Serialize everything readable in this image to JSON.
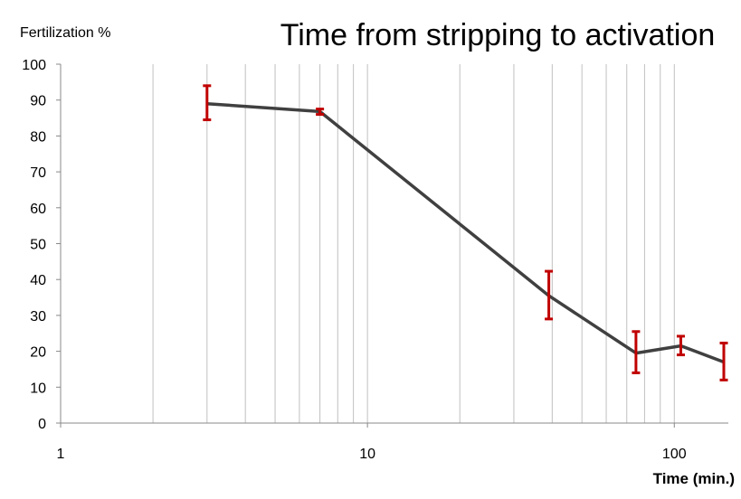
{
  "chart_data": {
    "type": "line",
    "title": "Time from stripping to activation",
    "ylabel": "Fertilization %",
    "xlabel": "Time (min.)",
    "x_scale": "log",
    "xlim": [
      1,
      150
    ],
    "ylim": [
      0,
      100
    ],
    "y_ticks": [
      0,
      10,
      20,
      30,
      40,
      50,
      60,
      70,
      80,
      90,
      100
    ],
    "x_tick_labels": [
      "1",
      "10",
      "100"
    ],
    "x_tick_values": [
      1,
      10,
      100
    ],
    "x_minor_gridlines": [
      2,
      3,
      4,
      5,
      6,
      7,
      8,
      9,
      10,
      20,
      30,
      40,
      50,
      60,
      70,
      80,
      90,
      100
    ],
    "grid": "vertical",
    "series": [
      {
        "x": [
          3,
          7,
          39,
          75,
          105,
          145
        ],
        "y": [
          89,
          86.8,
          35.5,
          19.5,
          21.5,
          17
        ],
        "error_low": [
          84.5,
          86,
          29,
          14,
          19,
          12
        ],
        "error_high": [
          94,
          87.5,
          42.3,
          25.5,
          24.2,
          22.3
        ]
      }
    ],
    "colors": {
      "line": "#404040",
      "error_bars": "#c00000",
      "grid": "#c0c0c0",
      "axis": "#888888"
    }
  }
}
